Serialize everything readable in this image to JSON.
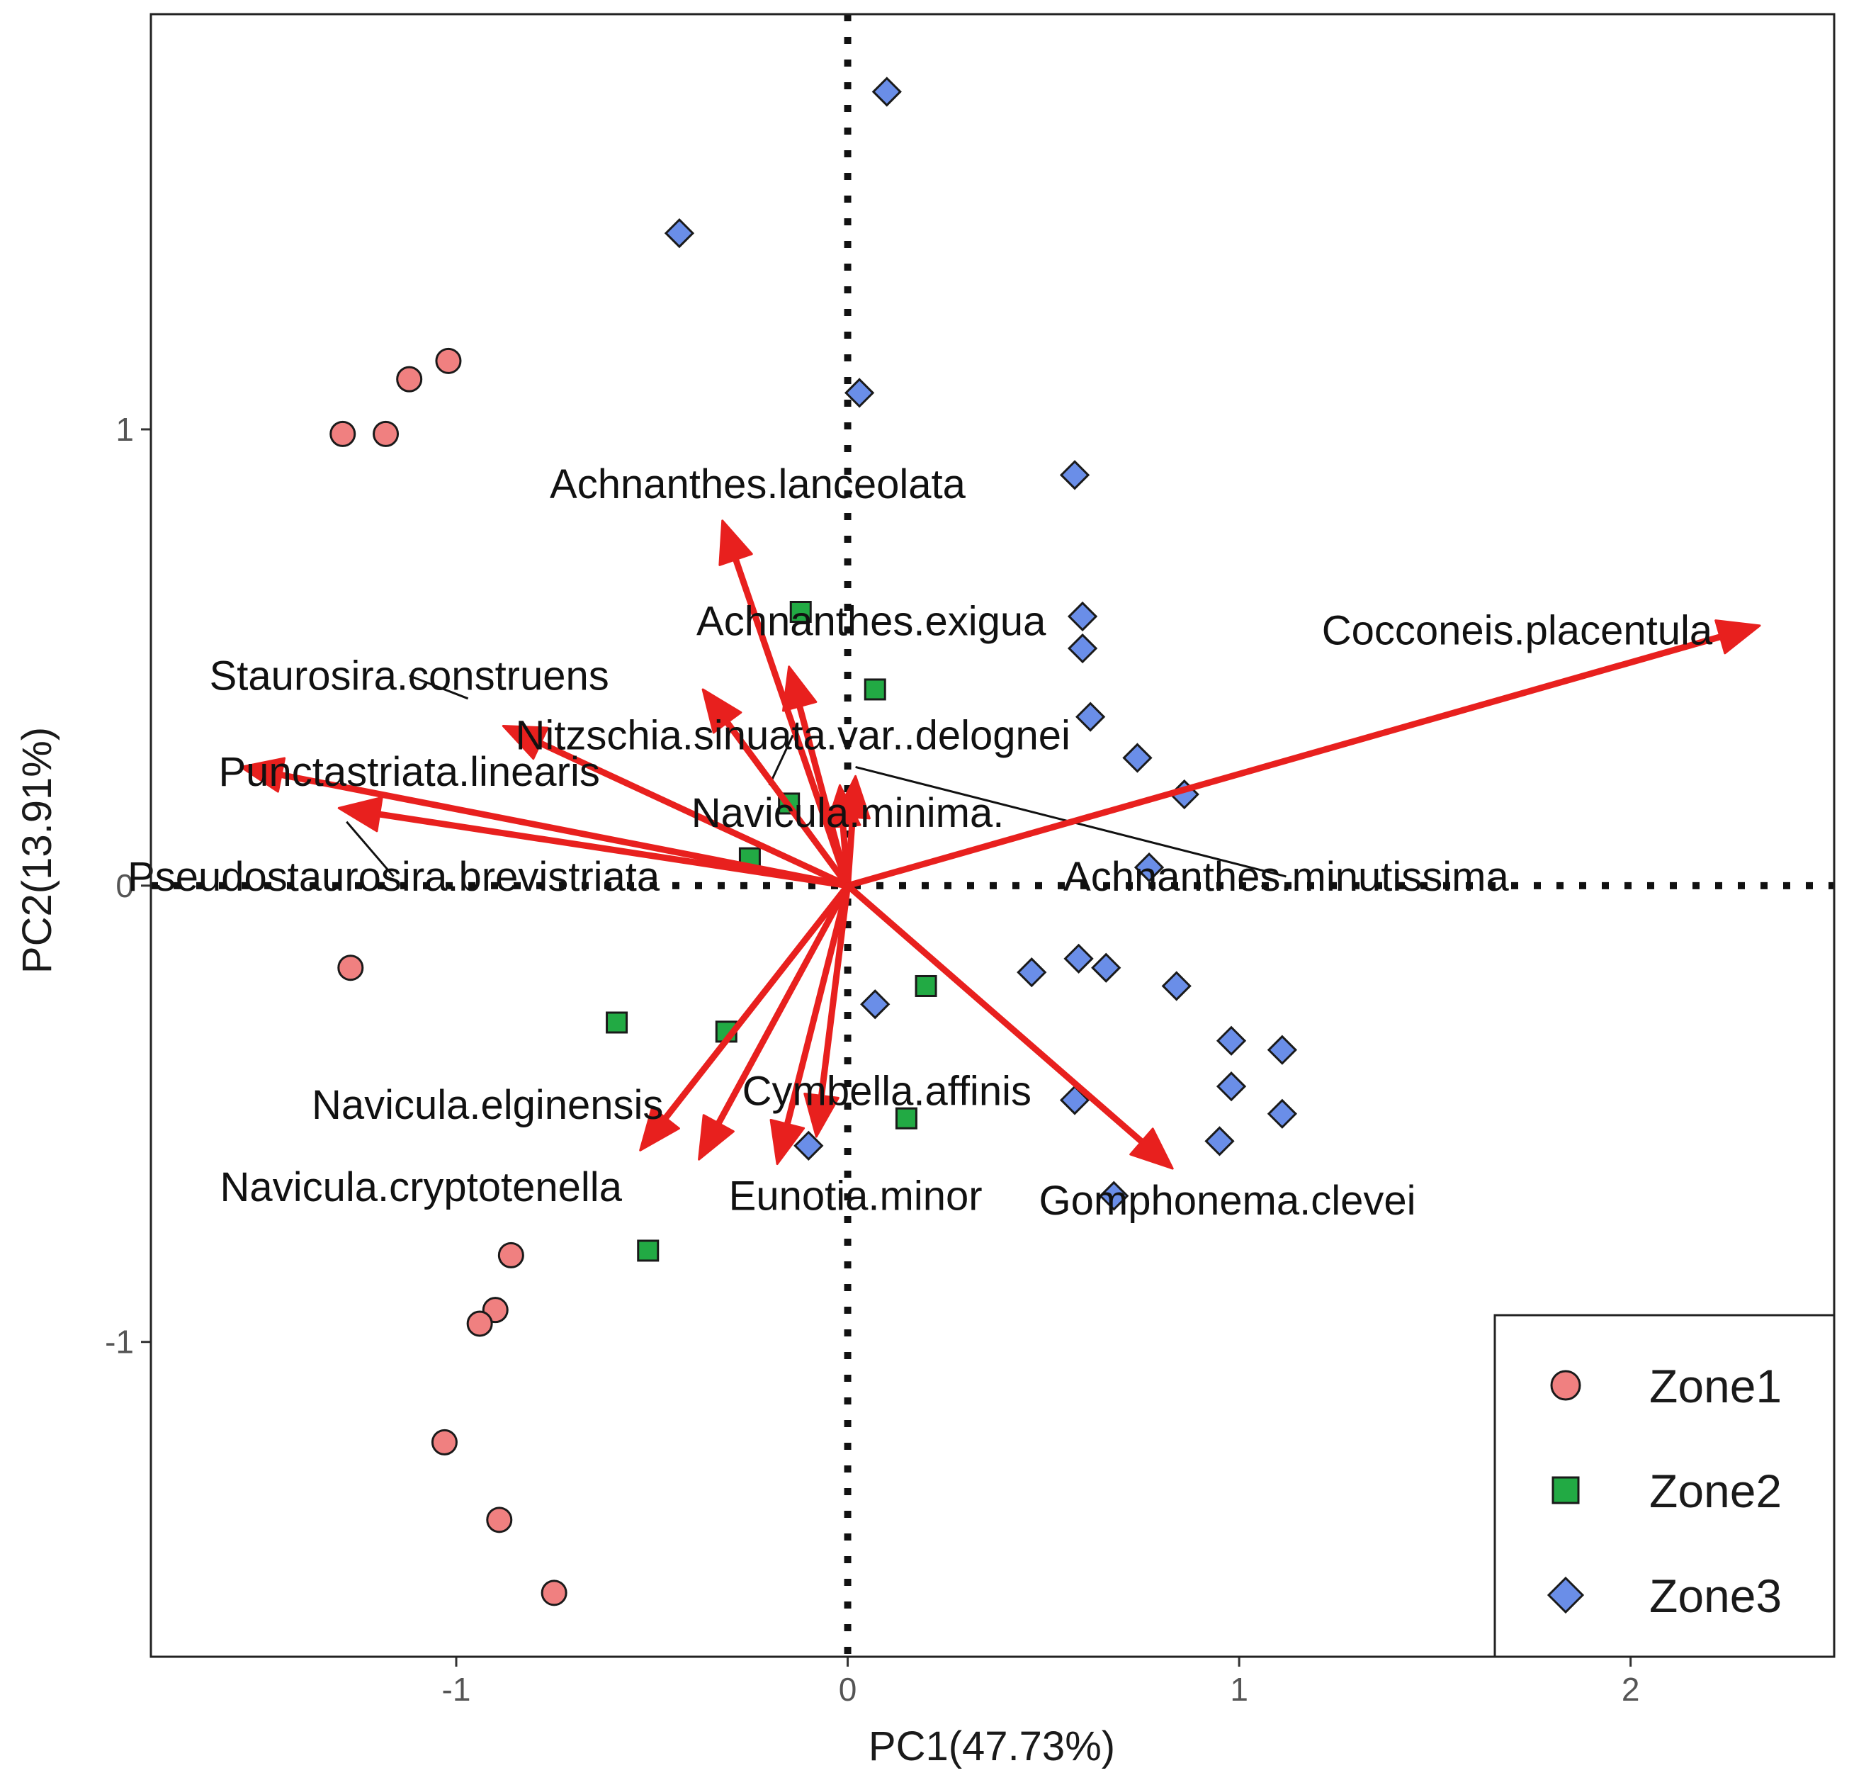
{
  "chart_data": {
    "type": "scatter",
    "subtype": "pca-biplot",
    "xlabel": "PC1(47.73%)",
    "ylabel": "PC2(13.91%)",
    "xlim": [
      -1.78,
      2.52
    ],
    "ylim": [
      -1.69,
      1.91
    ],
    "x_ticks": [
      -1,
      0,
      1,
      2
    ],
    "x_tick_labels": [
      "-1",
      "0",
      "1",
      "2"
    ],
    "y_ticks": [
      -1,
      0,
      1
    ],
    "y_tick_labels": [
      "-1",
      "0",
      "1"
    ],
    "reference_lines": {
      "x": 0,
      "y": 0,
      "style": "dotted"
    },
    "legend_position": "bottom-right",
    "series": [
      {
        "name": "Zone1",
        "shape": "circle",
        "color": "#F08080",
        "points": [
          [
            -1.29,
            0.99
          ],
          [
            -1.18,
            0.99
          ],
          [
            -1.12,
            1.11
          ],
          [
            -1.02,
            1.15
          ],
          [
            -1.27,
            -0.18
          ],
          [
            -0.86,
            -0.81
          ],
          [
            -0.9,
            -0.93
          ],
          [
            -0.94,
            -0.96
          ],
          [
            -1.03,
            -1.22
          ],
          [
            -0.89,
            -1.39
          ],
          [
            -0.75,
            -1.55
          ]
        ]
      },
      {
        "name": "Zone2",
        "shape": "square",
        "color": "#22AA44",
        "points": [
          [
            -0.12,
            0.6
          ],
          [
            0.07,
            0.43
          ],
          [
            -0.25,
            0.06
          ],
          [
            -0.15,
            0.18
          ],
          [
            -0.59,
            -0.3
          ],
          [
            -0.31,
            -0.32
          ],
          [
            0.2,
            -0.22
          ],
          [
            0.15,
            -0.51
          ],
          [
            -0.51,
            -0.8
          ]
        ]
      },
      {
        "name": "Zone3",
        "shape": "diamond",
        "color": "#6A8EE8",
        "points": [
          [
            0.1,
            1.74
          ],
          [
            -0.43,
            1.43
          ],
          [
            0.03,
            1.08
          ],
          [
            0.58,
            0.9
          ],
          [
            0.6,
            0.59
          ],
          [
            0.6,
            0.52
          ],
          [
            0.62,
            0.37
          ],
          [
            0.74,
            0.28
          ],
          [
            0.86,
            0.2
          ],
          [
            0.77,
            0.04
          ],
          [
            0.47,
            -0.19
          ],
          [
            0.59,
            -0.16
          ],
          [
            0.66,
            -0.18
          ],
          [
            0.84,
            -0.22
          ],
          [
            0.98,
            -0.34
          ],
          [
            1.11,
            -0.36
          ],
          [
            0.98,
            -0.44
          ],
          [
            1.11,
            -0.5
          ],
          [
            0.58,
            -0.47
          ],
          [
            0.95,
            -0.56
          ],
          [
            0.07,
            -0.26
          ],
          [
            -0.1,
            -0.57
          ],
          [
            0.68,
            -0.68
          ]
        ]
      }
    ],
    "loadings": [
      {
        "label": "Achnanthes.lanceolata",
        "x": -0.32,
        "y": 0.8
      },
      {
        "label": "Achnanthes.exigua",
        "x": -0.15,
        "y": 0.48
      },
      {
        "label": "Cocconeis.placentula",
        "x": 2.33,
        "y": 0.57
      },
      {
        "label": "Staurosira.construens",
        "x": -0.88,
        "y": 0.35
      },
      {
        "label": "Nitzschia.sinuata.var..delognei",
        "x": -0.37,
        "y": 0.43
      },
      {
        "label": "Punctastriata.linearis",
        "x": -1.55,
        "y": 0.26
      },
      {
        "label": "Navicula.minima.",
        "x": 0.02,
        "y": 0.24
      },
      {
        "label": "Pseudostaurosira.brevistriata",
        "x": -1.3,
        "y": 0.17
      },
      {
        "label": "Achnanthes.minutissima",
        "x": -0.02,
        "y": 0.22
      },
      {
        "label": "Navicula.elginensis",
        "x": -0.53,
        "y": -0.58
      },
      {
        "label": "Cymbella.affinis",
        "x": -0.08,
        "y": -0.55
      },
      {
        "label": "Navicula.cryptotenella",
        "x": -0.38,
        "y": -0.6
      },
      {
        "label": "Eunotia.minor",
        "x": -0.18,
        "y": -0.61
      },
      {
        "label": "Gomphonema.clevei",
        "x": 0.83,
        "y": -0.62
      }
    ],
    "annotations": [
      {
        "text": "Achnanthes.lanceolata",
        "x": -0.23,
        "y": 0.88
      },
      {
        "text": "Achnanthes.exigua",
        "x": 0.06,
        "y": 0.58
      },
      {
        "text": "Cocconeis.placentula",
        "x": 1.71,
        "y": 0.56
      },
      {
        "text": "Staurosira.construens",
        "x": -1.12,
        "y": 0.46,
        "leader_to": [
          -0.97,
          0.41
        ]
      },
      {
        "text": "Nitzschia.sinuata.var..delognei",
        "x": -0.14,
        "y": 0.33,
        "leader_to": [
          -0.2,
          0.22
        ]
      },
      {
        "text": "Punctastriata.linearis",
        "x": -1.12,
        "y": 0.25
      },
      {
        "text": "Navicula.minima.",
        "x": 0.0,
        "y": 0.16
      },
      {
        "text": "Pseudostaurosira.brevistriata",
        "x": -1.16,
        "y": 0.02,
        "leader_to": [
          -1.28,
          0.14
        ]
      },
      {
        "text": "Achnanthes.minutissima",
        "x": 1.12,
        "y": 0.02,
        "leader_to": [
          0.02,
          0.26
        ]
      },
      {
        "text": "Navicula.elginensis",
        "x": -0.92,
        "y": -0.48
      },
      {
        "text": "Cymbella.affinis",
        "x": 0.1,
        "y": -0.45
      },
      {
        "text": "Navicula.cryptotenella",
        "x": -1.09,
        "y": -0.66
      },
      {
        "text": "Eunotia.minor",
        "x": 0.02,
        "y": -0.68
      },
      {
        "text": "Gomphonema.clevei",
        "x": 0.97,
        "y": -0.69
      }
    ]
  }
}
